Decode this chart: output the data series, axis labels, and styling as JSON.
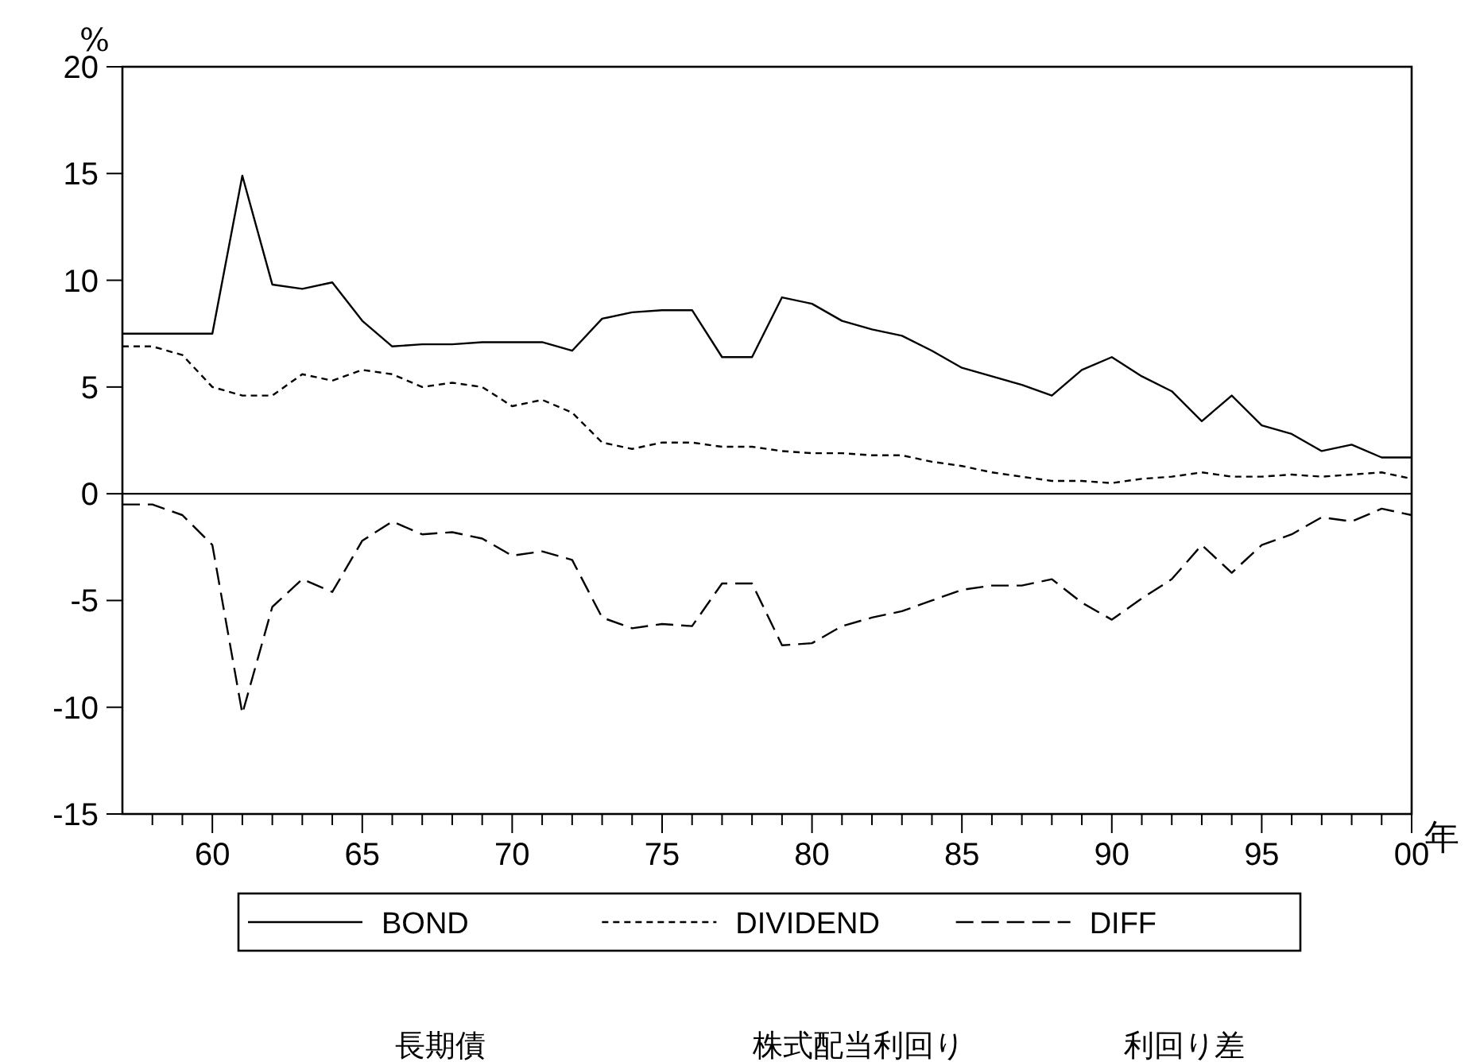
{
  "chart_data": {
    "type": "line",
    "ylabel": "%",
    "xlabel": "年",
    "x": [
      1957,
      1958,
      1959,
      1960,
      1961,
      1962,
      1963,
      1964,
      1965,
      1966,
      1967,
      1968,
      1969,
      1970,
      1971,
      1972,
      1973,
      1974,
      1975,
      1976,
      1977,
      1978,
      1979,
      1980,
      1981,
      1982,
      1983,
      1984,
      1985,
      1986,
      1987,
      1988,
      1989,
      1990,
      1991,
      1992,
      1993,
      1994,
      1995,
      1996,
      1997,
      1998,
      1999,
      2000
    ],
    "series": [
      {
        "name": "BOND",
        "color": "#000000",
        "line_style": "solid",
        "values": [
          7.5,
          7.5,
          7.5,
          7.5,
          14.9,
          9.8,
          9.6,
          9.9,
          8.1,
          6.9,
          7.0,
          7.0,
          7.1,
          7.1,
          7.1,
          6.7,
          8.2,
          8.5,
          8.6,
          8.6,
          6.4,
          6.4,
          9.2,
          8.9,
          8.1,
          7.7,
          7.4,
          6.7,
          5.9,
          5.5,
          5.1,
          4.6,
          5.8,
          6.4,
          5.5,
          4.8,
          3.4,
          4.6,
          3.2,
          2.8,
          2.0,
          2.3,
          1.7,
          1.7
        ]
      },
      {
        "name": "DIVIDEND",
        "color": "#000000",
        "line_style": "dotted",
        "values": [
          6.9,
          6.9,
          6.5,
          5.0,
          4.6,
          4.6,
          5.6,
          5.3,
          5.8,
          5.6,
          5.0,
          5.2,
          5.0,
          4.1,
          4.4,
          3.8,
          2.4,
          2.1,
          2.4,
          2.4,
          2.2,
          2.2,
          2.0,
          1.9,
          1.9,
          1.8,
          1.8,
          1.5,
          1.3,
          1.0,
          0.8,
          0.6,
          0.6,
          0.5,
          0.7,
          0.8,
          1.0,
          0.8,
          0.8,
          0.9,
          0.8,
          0.9,
          1.0,
          0.7
        ]
      },
      {
        "name": "DIFF",
        "color": "#000000",
        "line_style": "dashed",
        "values": [
          -0.5,
          -0.5,
          -1.0,
          -2.4,
          -10.3,
          -5.3,
          -4.0,
          -4.6,
          -2.2,
          -1.3,
          -1.9,
          -1.8,
          -2.1,
          -2.9,
          -2.7,
          -3.1,
          -5.8,
          -6.3,
          -6.1,
          -6.2,
          -4.2,
          -4.2,
          -7.1,
          -7.0,
          -6.2,
          -5.8,
          -5.5,
          -5.0,
          -4.5,
          -4.3,
          -4.3,
          -4.0,
          -5.1,
          -5.9,
          -4.9,
          -4.0,
          -2.4,
          -3.7,
          -2.4,
          -1.9,
          -1.1,
          -1.3,
          -0.7,
          -1.0
        ]
      }
    ],
    "xlim": [
      1957,
      2000
    ],
    "xticks": [
      {
        "value": 1958,
        "label": null
      },
      {
        "value": 1959,
        "label": null
      },
      {
        "value": 1960,
        "label": "60"
      },
      {
        "value": 1961,
        "label": null
      },
      {
        "value": 1962,
        "label": null
      },
      {
        "value": 1963,
        "label": null
      },
      {
        "value": 1964,
        "label": null
      },
      {
        "value": 1965,
        "label": "65"
      },
      {
        "value": 1966,
        "label": null
      },
      {
        "value": 1967,
        "label": null
      },
      {
        "value": 1968,
        "label": null
      },
      {
        "value": 1969,
        "label": null
      },
      {
        "value": 1970,
        "label": "70"
      },
      {
        "value": 1971,
        "label": null
      },
      {
        "value": 1972,
        "label": null
      },
      {
        "value": 1973,
        "label": null
      },
      {
        "value": 1974,
        "label": null
      },
      {
        "value": 1975,
        "label": "75"
      },
      {
        "value": 1976,
        "label": null
      },
      {
        "value": 1977,
        "label": null
      },
      {
        "value": 1978,
        "label": null
      },
      {
        "value": 1979,
        "label": null
      },
      {
        "value": 1980,
        "label": "80"
      },
      {
        "value": 1981,
        "label": null
      },
      {
        "value": 1982,
        "label": null
      },
      {
        "value": 1983,
        "label": null
      },
      {
        "value": 1984,
        "label": null
      },
      {
        "value": 1985,
        "label": "85"
      },
      {
        "value": 1986,
        "label": null
      },
      {
        "value": 1987,
        "label": null
      },
      {
        "value": 1988,
        "label": null
      },
      {
        "value": 1989,
        "label": null
      },
      {
        "value": 1990,
        "label": "90"
      },
      {
        "value": 1991,
        "label": null
      },
      {
        "value": 1992,
        "label": null
      },
      {
        "value": 1993,
        "label": null
      },
      {
        "value": 1994,
        "label": null
      },
      {
        "value": 1995,
        "label": "95"
      },
      {
        "value": 1996,
        "label": null
      },
      {
        "value": 1997,
        "label": null
      },
      {
        "value": 1998,
        "label": null
      },
      {
        "value": 1999,
        "label": null
      },
      {
        "value": 2000,
        "label": "00"
      }
    ],
    "ylim": [
      -15,
      20
    ],
    "yticks": [
      -15,
      -10,
      -5,
      0,
      5,
      10,
      15,
      20
    ],
    "ref_lines": [
      {
        "axis": "y",
        "value": 0,
        "color": "#000000"
      }
    ],
    "grid": false,
    "legend": "bottom",
    "marker": "none",
    "annotations": [
      "長期債",
      "株式配当利回り",
      "利回り差"
    ]
  }
}
